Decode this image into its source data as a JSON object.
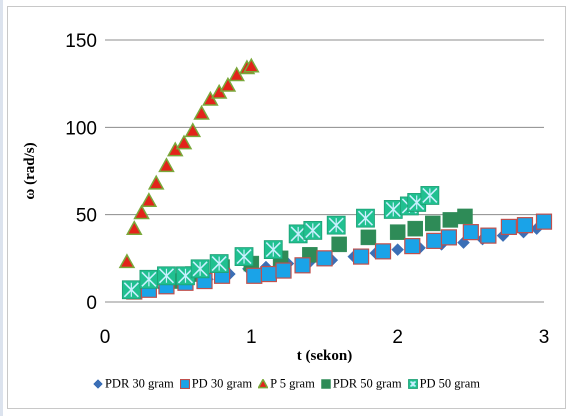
{
  "chart_data": {
    "type": "scatter",
    "title": "",
    "xlabel": "t (sekon)",
    "ylabel": "ω (rad/s)",
    "xlim": [
      0,
      3
    ],
    "ylim": [
      0,
      150
    ],
    "x_ticks": [
      "0",
      "1",
      "2",
      "3"
    ],
    "y_ticks": [
      "0",
      "50",
      "100",
      "150"
    ],
    "grid": "horizontal",
    "legend_position": "bottom",
    "series": [
      {
        "name": "PDR 30 gram",
        "marker": "diamond",
        "color": "#3b6fb6",
        "points": [
          [
            0.16,
            5
          ],
          [
            0.28,
            6
          ],
          [
            0.4,
            8
          ],
          [
            0.55,
            10
          ],
          [
            0.7,
            13
          ],
          [
            0.85,
            16
          ],
          [
            0.98,
            19
          ],
          [
            1.1,
            20
          ],
          [
            1.25,
            22
          ],
          [
            1.4,
            23
          ],
          [
            1.55,
            24
          ],
          [
            1.7,
            26
          ],
          [
            1.85,
            28
          ],
          [
            2.0,
            30
          ],
          [
            2.15,
            31
          ],
          [
            2.3,
            33
          ],
          [
            2.45,
            34
          ],
          [
            2.58,
            36
          ],
          [
            2.72,
            38
          ],
          [
            2.86,
            40
          ],
          [
            2.95,
            42
          ]
        ]
      },
      {
        "name": "PD 30 gram",
        "marker": "square",
        "color": "#1aa3e8",
        "edge": "#c0504d",
        "points": [
          [
            0.2,
            6
          ],
          [
            0.3,
            7
          ],
          [
            0.42,
            9
          ],
          [
            0.55,
            11
          ],
          [
            0.68,
            12
          ],
          [
            0.8,
            15
          ],
          [
            1.02,
            15
          ],
          [
            1.12,
            16
          ],
          [
            1.22,
            18
          ],
          [
            1.35,
            21
          ],
          [
            1.5,
            25
          ],
          [
            1.75,
            26
          ],
          [
            1.9,
            29
          ],
          [
            2.1,
            32
          ],
          [
            2.25,
            35
          ],
          [
            2.35,
            37
          ],
          [
            2.5,
            40
          ],
          [
            2.62,
            38
          ],
          [
            2.76,
            43
          ],
          [
            2.87,
            44
          ],
          [
            3.0,
            46
          ]
        ]
      },
      {
        "name": "P 5 gram",
        "marker": "triangle",
        "color": "#e3231b",
        "edge": "#7aa83a",
        "points": [
          [
            0.15,
            23
          ],
          [
            0.2,
            42
          ],
          [
            0.25,
            51
          ],
          [
            0.3,
            58
          ],
          [
            0.35,
            68
          ],
          [
            0.42,
            78
          ],
          [
            0.48,
            87
          ],
          [
            0.54,
            91
          ],
          [
            0.6,
            98
          ],
          [
            0.66,
            108
          ],
          [
            0.72,
            116
          ],
          [
            0.78,
            120
          ],
          [
            0.84,
            124
          ],
          [
            0.9,
            130
          ],
          [
            0.97,
            134
          ],
          [
            1.0,
            135
          ]
        ]
      },
      {
        "name": "PDR 50 gram",
        "marker": "square",
        "color": "#2e8b57",
        "points": [
          [
            0.2,
            7
          ],
          [
            0.3,
            8
          ],
          [
            0.45,
            12
          ],
          [
            0.6,
            16
          ],
          [
            0.8,
            20
          ],
          [
            1.0,
            22
          ],
          [
            1.2,
            25
          ],
          [
            1.4,
            27
          ],
          [
            1.6,
            33
          ],
          [
            1.8,
            37
          ],
          [
            2.0,
            40
          ],
          [
            2.12,
            42
          ],
          [
            2.24,
            45
          ],
          [
            2.36,
            47
          ],
          [
            2.46,
            49
          ]
        ]
      },
      {
        "name": "PD 50 gram",
        "marker": "square-x",
        "color": "#20c090",
        "points": [
          [
            0.18,
            7
          ],
          [
            0.3,
            13
          ],
          [
            0.42,
            15
          ],
          [
            0.55,
            15
          ],
          [
            0.65,
            19
          ],
          [
            0.78,
            22
          ],
          [
            0.95,
            26
          ],
          [
            1.15,
            30
          ],
          [
            1.32,
            39
          ],
          [
            1.42,
            41
          ],
          [
            1.58,
            44
          ],
          [
            1.78,
            48
          ],
          [
            1.97,
            53
          ],
          [
            2.08,
            55
          ],
          [
            2.13,
            57
          ],
          [
            2.22,
            61
          ]
        ]
      }
    ]
  }
}
